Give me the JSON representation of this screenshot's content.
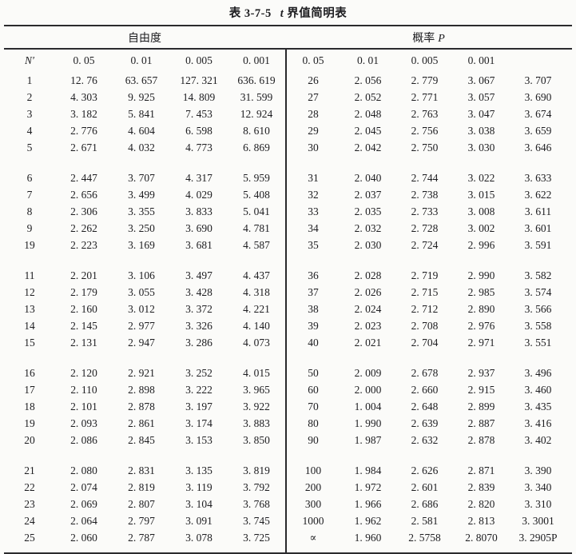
{
  "colors": {
    "ink": "#1d1d20",
    "rule": "#2b2b2e",
    "background": "#fbfbf9"
  },
  "title": {
    "code": "表 3-7-5",
    "symbol": "t",
    "name": "界值简明表"
  },
  "table": {
    "group_headers": {
      "left": "自由度",
      "right_label": "概率",
      "right_symbol": "P"
    },
    "col_headers": {
      "left": [
        "N′",
        "0. 05",
        "0. 01",
        "0. 005",
        "0. 001"
      ],
      "right": [
        "0. 05",
        "0. 01",
        "0. 005",
        "0. 001",
        ""
      ]
    },
    "groups": [
      {
        "left": [
          [
            "1",
            "12. 76",
            "63. 657",
            "127. 321",
            "636. 619"
          ],
          [
            "2",
            "4. 303",
            "9. 925",
            "14. 809",
            "31. 599"
          ],
          [
            "3",
            "3. 182",
            "5. 841",
            "7. 453",
            "12. 924"
          ],
          [
            "4",
            "2. 776",
            "4. 604",
            "6. 598",
            "8. 610"
          ],
          [
            "5",
            "2. 671",
            "4. 032",
            "4. 773",
            "6. 869"
          ]
        ],
        "right": [
          [
            "26",
            "2. 056",
            "2. 779",
            "3. 067",
            "3. 707"
          ],
          [
            "27",
            "2. 052",
            "2. 771",
            "3. 057",
            "3. 690"
          ],
          [
            "28",
            "2. 048",
            "2. 763",
            "3. 047",
            "3. 674"
          ],
          [
            "29",
            "2. 045",
            "2. 756",
            "3. 038",
            "3. 659"
          ],
          [
            "30",
            "2. 042",
            "2. 750",
            "3. 030",
            "3. 646"
          ]
        ]
      },
      {
        "left": [
          [
            "6",
            "2. 447",
            "3. 707",
            "4. 317",
            "5. 959"
          ],
          [
            "7",
            "2. 656",
            "3. 499",
            "4. 029",
            "5. 408"
          ],
          [
            "8",
            "2. 306",
            "3. 355",
            "3. 833",
            "5. 041"
          ],
          [
            "9",
            "2. 262",
            "3. 250",
            "3. 690",
            "4. 781"
          ],
          [
            "19",
            "2. 223",
            "3. 169",
            "3. 681",
            "4. 587"
          ]
        ],
        "right": [
          [
            "31",
            "2. 040",
            "2. 744",
            "3. 022",
            "3. 633"
          ],
          [
            "32",
            "2. 037",
            "2. 738",
            "3. 015",
            "3. 622"
          ],
          [
            "33",
            "2. 035",
            "2. 733",
            "3. 008",
            "3. 611"
          ],
          [
            "34",
            "2. 032",
            "2. 728",
            "3. 002",
            "3. 601"
          ],
          [
            "35",
            "2. 030",
            "2. 724",
            "2. 996",
            "3. 591"
          ]
        ]
      },
      {
        "left": [
          [
            "11",
            "2. 201",
            "3. 106",
            "3. 497",
            "4. 437"
          ],
          [
            "12",
            "2. 179",
            "3. 055",
            "3. 428",
            "4. 318"
          ],
          [
            "13",
            "2. 160",
            "3. 012",
            "3. 372",
            "4. 221"
          ],
          [
            "14",
            "2. 145",
            "2. 977",
            "3. 326",
            "4. 140"
          ],
          [
            "15",
            "2. 131",
            "2. 947",
            "3. 286",
            "4. 073"
          ]
        ],
        "right": [
          [
            "36",
            "2. 028",
            "2. 719",
            "2. 990",
            "3. 582"
          ],
          [
            "37",
            "2. 026",
            "2. 715",
            "2. 985",
            "3. 574"
          ],
          [
            "38",
            "2. 024",
            "2. 712",
            "2. 890",
            "3. 566"
          ],
          [
            "39",
            "2. 023",
            "2. 708",
            "2. 976",
            "3. 558"
          ],
          [
            "40",
            "2. 021",
            "2. 704",
            "2. 971",
            "3. 551"
          ]
        ]
      },
      {
        "left": [
          [
            "16",
            "2. 120",
            "2. 921",
            "3. 252",
            "4. 015"
          ],
          [
            "17",
            "2. 110",
            "2. 898",
            "3. 222",
            "3. 965"
          ],
          [
            "18",
            "2. 101",
            "2. 878",
            "3. 197",
            "3. 922"
          ],
          [
            "19",
            "2. 093",
            "2. 861",
            "3. 174",
            "3. 883"
          ],
          [
            "20",
            "2. 086",
            "2. 845",
            "3. 153",
            "3. 850"
          ]
        ],
        "right": [
          [
            "50",
            "2. 009",
            "2. 678",
            "2. 937",
            "3. 496"
          ],
          [
            "60",
            "2. 000",
            "2. 660",
            "2. 915",
            "3. 460"
          ],
          [
            "70",
            "1. 004",
            "2. 648",
            "2. 899",
            "3. 435"
          ],
          [
            "80",
            "1. 990",
            "2. 639",
            "2. 887",
            "3. 416"
          ],
          [
            "90",
            "1. 987",
            "2. 632",
            "2. 878",
            "3. 402"
          ]
        ]
      },
      {
        "left": [
          [
            "21",
            "2. 080",
            "2. 831",
            "3. 135",
            "3. 819"
          ],
          [
            "22",
            "2. 074",
            "2. 819",
            "3. 119",
            "3. 792"
          ],
          [
            "23",
            "2. 069",
            "2. 807",
            "3. 104",
            "3. 768"
          ],
          [
            "24",
            "2. 064",
            "2. 797",
            "3. 091",
            "3. 745"
          ],
          [
            "25",
            "2. 060",
            "2. 787",
            "3. 078",
            "3. 725"
          ]
        ],
        "right": [
          [
            "100",
            "1. 984",
            "2. 626",
            "2. 871",
            "3. 390"
          ],
          [
            "200",
            "1. 972",
            "2. 601",
            "2. 839",
            "3. 340"
          ],
          [
            "300",
            "1. 966",
            "2. 686",
            "2. 820",
            "3. 310"
          ],
          [
            "1000",
            "1. 962",
            "2. 581",
            "2. 813",
            "3. 3001"
          ],
          [
            "∝",
            "1. 960",
            "2. 5758",
            "2. 8070",
            "3. 2905P"
          ]
        ]
      }
    ]
  }
}
